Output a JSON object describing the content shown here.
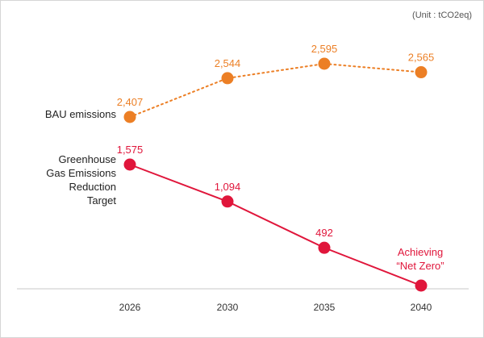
{
  "unit_label": "(Unit : tCO2eq)",
  "colors": {
    "bau": "#ec7f25",
    "target": "#e0163b",
    "axis": "#c8c8c8",
    "tick_text": "#333333"
  },
  "chart_data": {
    "type": "line",
    "categories": [
      "2026",
      "2030",
      "2035",
      "2040"
    ],
    "series": [
      {
        "key": "bau",
        "name": "BAU emissions",
        "name_lines": [
          "BAU emissions"
        ],
        "values": [
          2407,
          2544,
          2595,
          2565
        ],
        "value_labels": [
          "2,407",
          "2,544",
          "2,595",
          "2,565"
        ],
        "line_style": "dotted"
      },
      {
        "key": "target",
        "name": "Greenhouse Gas Emissions Reduction Target",
        "name_lines": [
          "Greenhouse",
          "Gas Emissions",
          "Reduction",
          "Target"
        ],
        "values": [
          1575,
          1094,
          492,
          0
        ],
        "value_labels": [
          "1,575",
          "1,094",
          "492",
          ""
        ],
        "line_style": "solid"
      }
    ],
    "annotation": {
      "lines": [
        "Achieving",
        "“Net Zero”"
      ]
    },
    "grid": false,
    "legend": "left"
  }
}
